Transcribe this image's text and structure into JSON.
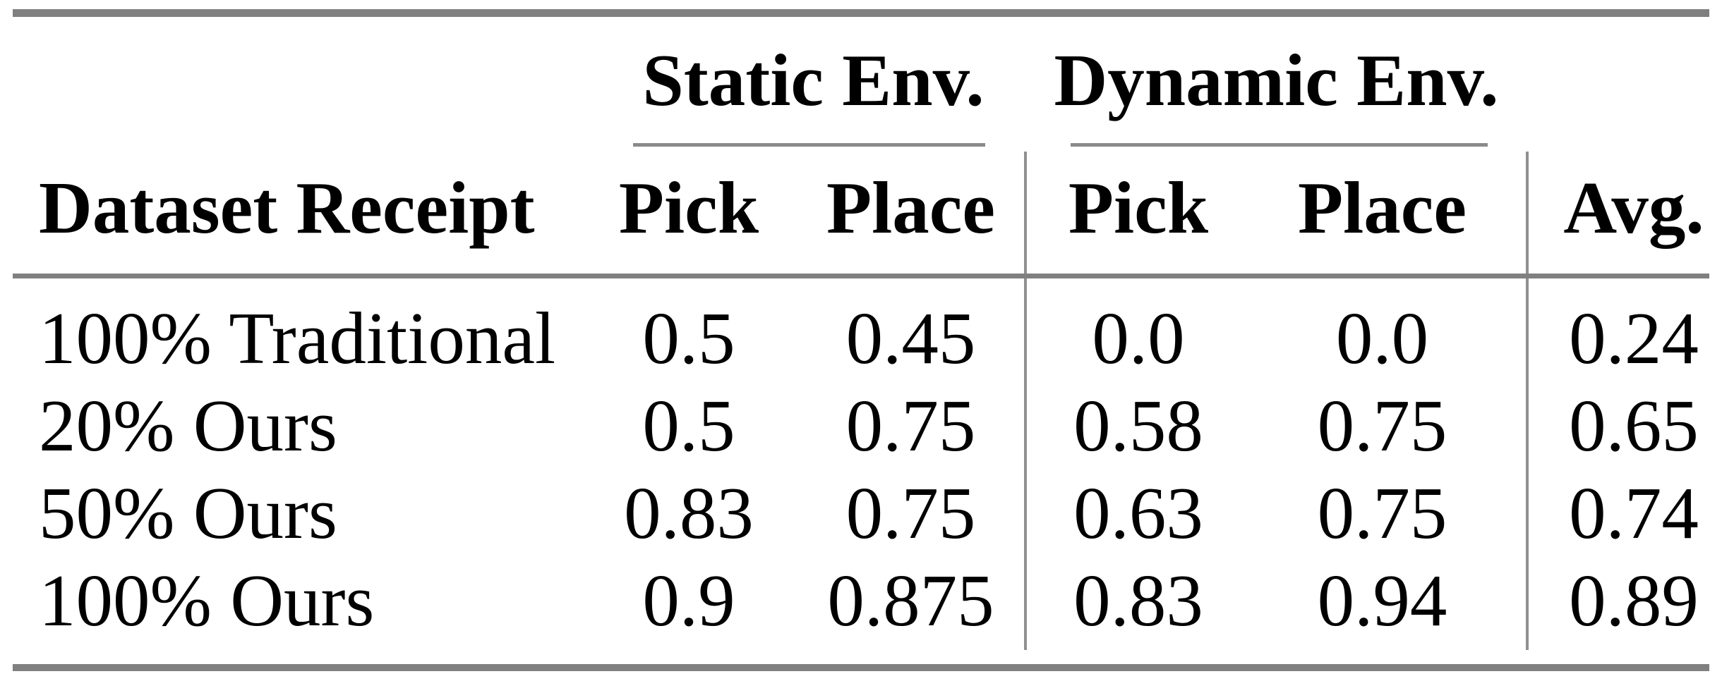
{
  "table": {
    "groups": [
      {
        "label": "Static Env."
      },
      {
        "label": "Dynamic Env."
      }
    ],
    "headers": {
      "dataset": "Dataset Receipt",
      "static_pick": "Pick",
      "static_place": "Place",
      "dynamic_pick": "Pick",
      "dynamic_place": "Place",
      "avg": "Avg."
    },
    "rows": [
      {
        "label": "100% Traditional",
        "static_pick": "0.5",
        "static_place": "0.45",
        "dynamic_pick": "0.0",
        "dynamic_place": "0.0",
        "avg": "0.24"
      },
      {
        "label": "20% Ours",
        "static_pick": "0.5",
        "static_place": "0.75",
        "dynamic_pick": "0.58",
        "dynamic_place": "0.75",
        "avg": "0.65"
      },
      {
        "label": "50% Ours",
        "static_pick": "0.83",
        "static_place": "0.75",
        "dynamic_pick": "0.63",
        "dynamic_place": "0.75",
        "avg": "0.74"
      },
      {
        "label": "100% Ours",
        "static_pick": "0.9",
        "static_place": "0.875",
        "dynamic_pick": "0.83",
        "dynamic_place": "0.94",
        "avg": "0.89"
      }
    ],
    "colors": {
      "thick_rule": "#808080",
      "thin_rule": "#8a8a8a",
      "vertical_rule": "#909090",
      "text": "#000000",
      "background": "#ffffff"
    }
  }
}
